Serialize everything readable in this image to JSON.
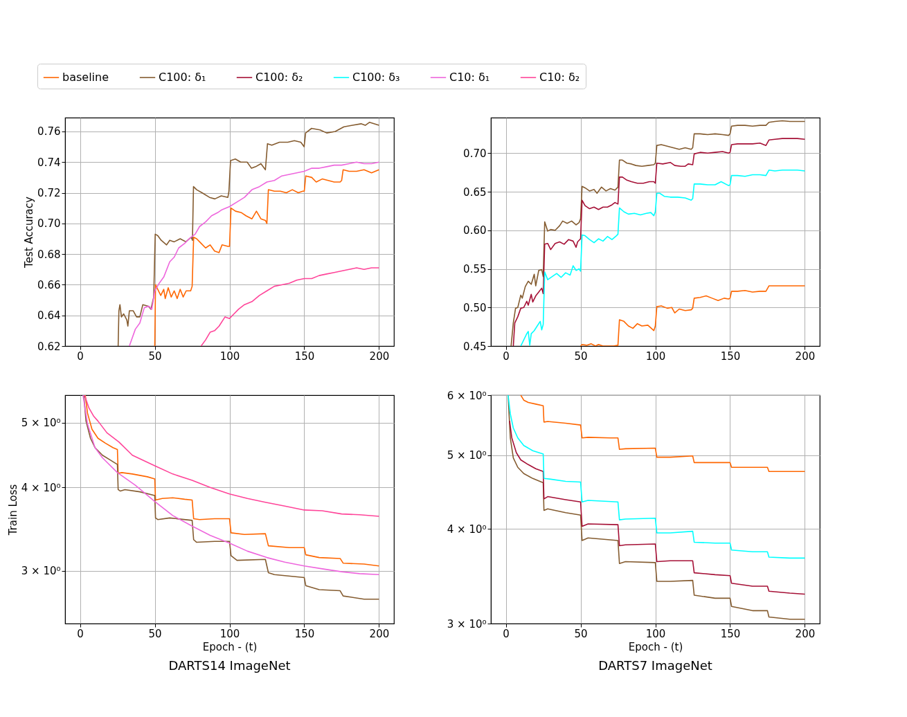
{
  "chart_data": [
    {
      "type": "line",
      "ylabel": "Test Accuracy",
      "legend": "top",
      "grid": true,
      "xlim": [
        -10,
        210
      ],
      "xticks": [
        0,
        50,
        100,
        150,
        200
      ],
      "ylim": [
        0.62,
        0.769
      ],
      "yticks": [
        0.62,
        0.64,
        0.66,
        0.68,
        {
          "value": 0.7,
          "label": "0.70"
        },
        0.72,
        0.74,
        0.76
      ],
      "series": [
        {
          "name": "baseline",
          "color": "#ff6600",
          "x": [
            50,
            50.5,
            52,
            54,
            56,
            57,
            59,
            61,
            63,
            65,
            67,
            69,
            71,
            74,
            75,
            76,
            78,
            81,
            84,
            87,
            90,
            93,
            95,
            99,
            100,
            101,
            104,
            108,
            111,
            115,
            118,
            121,
            124,
            125,
            126,
            130,
            134,
            138,
            142,
            146,
            149,
            150,
            151,
            155,
            158,
            162,
            166,
            170,
            174,
            175,
            176,
            180,
            185,
            190,
            195,
            200
          ],
          "values": [
            0.62,
            0.66,
            0.657,
            0.653,
            0.657,
            0.651,
            0.658,
            0.652,
            0.656,
            0.651,
            0.657,
            0.652,
            0.656,
            0.656,
            0.659,
            0.691,
            0.69,
            0.687,
            0.684,
            0.686,
            0.682,
            0.681,
            0.686,
            0.685,
            0.685,
            0.71,
            0.708,
            0.707,
            0.705,
            0.703,
            0.708,
            0.703,
            0.702,
            0.7,
            0.722,
            0.721,
            0.721,
            0.72,
            0.722,
            0.72,
            0.721,
            0.721,
            0.731,
            0.73,
            0.727,
            0.729,
            0.728,
            0.727,
            0.727,
            0.728,
            0.735,
            0.734,
            0.734,
            0.735,
            0.733,
            0.735
          ]
        },
        {
          "name": "C100: δ₁",
          "color": "#845b2f",
          "x": [
            25.5,
            26,
            26.7,
            27.7,
            29.2,
            31.3,
            32,
            33,
            35.6,
            37.8,
            40,
            42,
            45.7,
            47.4,
            49.3,
            50.3,
            52,
            54.3,
            57.9,
            60,
            63,
            67,
            70.8,
            74.4,
            75.2,
            75.9,
            78,
            81.6,
            86.6,
            90.2,
            94.5,
            98.9,
            99.6,
            100.7,
            103.9,
            107.5,
            111.8,
            114.7,
            117.5,
            121,
            124,
            125.4,
            128.3,
            133.4,
            139,
            143.4,
            147.7,
            149.9,
            150.9,
            154.9,
            160.6,
            165,
            170.7,
            176.5,
            182.2,
            188,
            190.8,
            193.7,
            200
          ],
          "values": [
            0.62,
            0.643,
            0.647,
            0.639,
            0.641,
            0.637,
            0.633,
            0.643,
            0.643,
            0.639,
            0.639,
            0.647,
            0.646,
            0.644,
            0.652,
            0.693,
            0.692,
            0.689,
            0.686,
            0.689,
            0.688,
            0.69,
            0.688,
            0.691,
            0.689,
            0.724,
            0.722,
            0.72,
            0.717,
            0.716,
            0.718,
            0.717,
            0.721,
            0.741,
            0.742,
            0.74,
            0.74,
            0.736,
            0.737,
            0.739,
            0.735,
            0.752,
            0.751,
            0.753,
            0.753,
            0.754,
            0.753,
            0.75,
            0.759,
            0.762,
            0.761,
            0.759,
            0.76,
            0.763,
            0.764,
            0.765,
            0.764,
            0.766,
            0.764
          ]
        },
        {
          "name": "C10: δ₁",
          "color": "#ee66dd",
          "x": [
            33,
            37,
            40,
            43,
            46,
            48,
            50,
            53,
            56,
            60,
            63,
            66,
            70,
            73,
            77,
            80,
            84,
            88,
            92,
            95,
            100,
            105,
            110,
            115,
            120,
            125,
            130,
            135,
            140,
            145,
            150,
            155,
            160,
            165,
            170,
            175,
            180,
            185,
            190,
            195,
            200
          ],
          "values": [
            0.62,
            0.631,
            0.635,
            0.645,
            0.646,
            0.644,
            0.656,
            0.661,
            0.665,
            0.675,
            0.678,
            0.684,
            0.687,
            0.69,
            0.693,
            0.698,
            0.701,
            0.705,
            0.707,
            0.709,
            0.711,
            0.714,
            0.717,
            0.722,
            0.724,
            0.727,
            0.728,
            0.731,
            0.732,
            0.733,
            0.734,
            0.736,
            0.736,
            0.737,
            0.738,
            0.738,
            0.739,
            0.74,
            0.739,
            0.739,
            0.74
          ]
        },
        {
          "name": "C10: δ₂",
          "color": "#ff4499",
          "x": [
            81,
            84,
            87,
            90,
            93,
            97,
            100,
            103,
            106,
            110,
            115,
            120,
            125,
            130,
            135,
            140,
            145,
            150,
            155,
            160,
            165,
            170,
            175,
            180,
            185,
            190,
            195,
            200
          ],
          "values": [
            0.62,
            0.624,
            0.629,
            0.63,
            0.633,
            0.639,
            0.638,
            0.641,
            0.644,
            0.647,
            0.649,
            0.653,
            0.656,
            0.659,
            0.66,
            0.661,
            0.663,
            0.664,
            0.664,
            0.666,
            0.667,
            0.668,
            0.669,
            0.67,
            0.671,
            0.67,
            0.671,
            0.671
          ]
        }
      ]
    },
    {
      "type": "line",
      "legend": "top",
      "grid": true,
      "xlim": [
        -10,
        210
      ],
      "xticks": [
        0,
        50,
        100,
        150,
        200
      ],
      "ylim": [
        0.45,
        0.746
      ],
      "yticks": [
        0.45,
        {
          "value": 0.5,
          "label": "0.50"
        },
        0.55,
        {
          "value": 0.6,
          "label": "0.60"
        },
        0.65,
        {
          "value": 0.7,
          "label": "0.70"
        }
      ],
      "series": [
        {
          "name": "baseline",
          "color": "#ff6600",
          "x": [
            50,
            51,
            54,
            57,
            60,
            62,
            65,
            68,
            72,
            75,
            76,
            79,
            82,
            85,
            88,
            91,
            95,
            99,
            100,
            101,
            104,
            108,
            111,
            113,
            116,
            120,
            124,
            125,
            126,
            130,
            134,
            138,
            142,
            146,
            149,
            150,
            151,
            155,
            160,
            165,
            170,
            174,
            176,
            180,
            185,
            190,
            195,
            200
          ],
          "values": [
            0.45,
            0.452,
            0.451,
            0.453,
            0.45,
            0.452,
            0.45,
            0.45,
            0.45,
            0.451,
            0.484,
            0.482,
            0.476,
            0.473,
            0.479,
            0.476,
            0.477,
            0.47,
            0.476,
            0.501,
            0.502,
            0.499,
            0.5,
            0.493,
            0.498,
            0.496,
            0.497,
            0.499,
            0.512,
            0.513,
            0.515,
            0.512,
            0.509,
            0.512,
            0.511,
            0.512,
            0.521,
            0.521,
            0.522,
            0.52,
            0.521,
            0.521,
            0.528,
            0.528,
            0.528,
            0.528,
            0.528,
            0.528
          ]
        },
        {
          "name": "C100: δ₁",
          "color": "#845b2f",
          "x": [
            3.5,
            5,
            6.5,
            8,
            10,
            11,
            13,
            15,
            17,
            19,
            20,
            22,
            24,
            25,
            26,
            28,
            30,
            33,
            36,
            38,
            41,
            44,
            47,
            49,
            50,
            51,
            53,
            56,
            59,
            61,
            64,
            67,
            70,
            73,
            75,
            76,
            78,
            81,
            84,
            87,
            91,
            95,
            99,
            100,
            101,
            104,
            108,
            112,
            116,
            120,
            124,
            125,
            126,
            130,
            135,
            140,
            145,
            149,
            150,
            151,
            155,
            160,
            165,
            170,
            174,
            176,
            180,
            185,
            190,
            195,
            200
          ],
          "values": [
            0.45,
            0.48,
            0.499,
            0.5,
            0.516,
            0.512,
            0.527,
            0.534,
            0.53,
            0.543,
            0.528,
            0.548,
            0.549,
            0.54,
            0.611,
            0.599,
            0.601,
            0.6,
            0.606,
            0.612,
            0.609,
            0.612,
            0.607,
            0.61,
            0.615,
            0.657,
            0.655,
            0.651,
            0.653,
            0.648,
            0.656,
            0.651,
            0.654,
            0.652,
            0.656,
            0.691,
            0.691,
            0.687,
            0.686,
            0.684,
            0.683,
            0.684,
            0.685,
            0.687,
            0.71,
            0.711,
            0.709,
            0.707,
            0.705,
            0.707,
            0.705,
            0.707,
            0.725,
            0.725,
            0.724,
            0.725,
            0.724,
            0.723,
            0.725,
            0.735,
            0.736,
            0.736,
            0.735,
            0.736,
            0.736,
            0.74,
            0.741,
            0.742,
            0.741,
            0.741,
            0.741
          ]
        },
        {
          "name": "C100: δ₂",
          "color": "#a50f35",
          "x": [
            5,
            6,
            8,
            10,
            12,
            14,
            15,
            17,
            18,
            20,
            22,
            24,
            25,
            26,
            28,
            30,
            33,
            36,
            39,
            42,
            45,
            47,
            48,
            50,
            51,
            53,
            56,
            59,
            62,
            65,
            68,
            71,
            73,
            75,
            76,
            78,
            81,
            84,
            88,
            92,
            96,
            99,
            100,
            101,
            105,
            110,
            113,
            117,
            120,
            122,
            125,
            126,
            130,
            135,
            140,
            145,
            149,
            150,
            151,
            155,
            160,
            165,
            170,
            174,
            176,
            180,
            185,
            190,
            195,
            200
          ],
          "values": [
            0.45,
            0.48,
            0.488,
            0.499,
            0.5,
            0.508,
            0.503,
            0.517,
            0.507,
            0.515,
            0.52,
            0.525,
            0.518,
            0.582,
            0.583,
            0.575,
            0.583,
            0.585,
            0.582,
            0.588,
            0.586,
            0.578,
            0.585,
            0.589,
            0.639,
            0.632,
            0.628,
            0.63,
            0.627,
            0.63,
            0.63,
            0.633,
            0.636,
            0.634,
            0.669,
            0.669,
            0.665,
            0.663,
            0.661,
            0.661,
            0.663,
            0.663,
            0.661,
            0.687,
            0.686,
            0.688,
            0.684,
            0.683,
            0.683,
            0.686,
            0.685,
            0.699,
            0.701,
            0.7,
            0.701,
            0.702,
            0.7,
            0.701,
            0.711,
            0.712,
            0.712,
            0.712,
            0.713,
            0.71,
            0.717,
            0.718,
            0.719,
            0.719,
            0.719,
            0.718
          ]
        },
        {
          "name": "C100: δ₃",
          "color": "#00ffff",
          "x": [
            10,
            12,
            14,
            15,
            16,
            17,
            19,
            21,
            23,
            24,
            25,
            26,
            28,
            31,
            34,
            37,
            40,
            43,
            45,
            47,
            49,
            50,
            51,
            53,
            56,
            59,
            62,
            65,
            68,
            71,
            74,
            75,
            76,
            79,
            82,
            86,
            90,
            94,
            97,
            99,
            100,
            101,
            103,
            106,
            110,
            115,
            120,
            124,
            125,
            126,
            130,
            135,
            140,
            144,
            149,
            150,
            151,
            155,
            160,
            165,
            170,
            174,
            176,
            180,
            185,
            190,
            195,
            200
          ],
          "values": [
            0.45,
            0.458,
            0.466,
            0.469,
            0.451,
            0.466,
            0.47,
            0.476,
            0.482,
            0.471,
            0.478,
            0.546,
            0.536,
            0.54,
            0.544,
            0.539,
            0.545,
            0.542,
            0.554,
            0.548,
            0.55,
            0.547,
            0.594,
            0.593,
            0.588,
            0.584,
            0.589,
            0.586,
            0.592,
            0.588,
            0.593,
            0.595,
            0.629,
            0.624,
            0.621,
            0.622,
            0.62,
            0.622,
            0.623,
            0.619,
            0.624,
            0.648,
            0.648,
            0.644,
            0.643,
            0.643,
            0.642,
            0.639,
            0.641,
            0.66,
            0.66,
            0.659,
            0.659,
            0.663,
            0.658,
            0.659,
            0.671,
            0.671,
            0.67,
            0.672,
            0.672,
            0.671,
            0.678,
            0.677,
            0.678,
            0.678,
            0.678,
            0.677
          ]
        }
      ]
    },
    {
      "type": "line",
      "title": "DARTS14 ImageNet",
      "xlabel": "Epoch - (t)",
      "ylabel": "Train Loss",
      "log": "y",
      "legend": "top",
      "grid": true,
      "xlim": [
        -10,
        210
      ],
      "xticks": [
        0,
        50,
        100,
        150,
        200
      ],
      "ylim": [
        2.5,
        5.5
      ],
      "yticks": [
        {
          "value": 3,
          "label": "3 × 10⁰"
        },
        {
          "value": 4,
          "label": "4 × 10⁰"
        },
        {
          "value": 5,
          "label": "5 × 10⁰"
        }
      ],
      "series": [
        {
          "name": "baseline",
          "color": "#ff6600",
          "x": [
            3.5,
            5,
            8,
            12,
            17,
            22,
            25,
            25.5,
            28,
            35,
            45,
            50,
            50.5,
            55,
            62,
            70,
            75,
            76,
            80,
            90,
            100,
            101,
            110,
            124,
            126,
            140,
            150,
            151,
            160,
            174,
            176,
            190,
            200
          ],
          "values": [
            5.5,
            5.17,
            4.89,
            4.74,
            4.66,
            4.59,
            4.56,
            4.2,
            4.21,
            4.19,
            4.15,
            4.12,
            3.83,
            3.85,
            3.86,
            3.84,
            3.83,
            3.59,
            3.58,
            3.59,
            3.59,
            3.42,
            3.4,
            3.41,
            3.27,
            3.25,
            3.25,
            3.17,
            3.14,
            3.13,
            3.08,
            3.07,
            3.05
          ]
        },
        {
          "name": "C100: δ₁",
          "color": "#845b2f",
          "x": [
            2.5,
            4,
            7,
            10,
            15,
            20,
            25,
            25.5,
            27,
            30,
            40,
            50,
            50.5,
            52,
            60,
            75,
            76,
            78,
            90,
            100,
            101,
            105,
            124,
            126,
            130,
            150,
            151,
            160,
            174,
            176,
            190,
            200
          ],
          "values": [
            5.5,
            5.03,
            4.74,
            4.59,
            4.47,
            4.4,
            4.33,
            3.97,
            3.95,
            3.97,
            3.94,
            3.89,
            3.6,
            3.58,
            3.6,
            3.57,
            3.34,
            3.31,
            3.32,
            3.32,
            3.16,
            3.11,
            3.12,
            2.98,
            2.96,
            2.93,
            2.85,
            2.81,
            2.8,
            2.75,
            2.72,
            2.72
          ]
        },
        {
          "name": "C10: δ₁",
          "color": "#ee66dd",
          "x": [
            2,
            5,
            10,
            15,
            25,
            37,
            50,
            62,
            75,
            87,
            100,
            112,
            125,
            137,
            150,
            162,
            175,
            187,
            200
          ],
          "values": [
            5.5,
            4.98,
            4.59,
            4.43,
            4.21,
            4.03,
            3.81,
            3.63,
            3.5,
            3.39,
            3.3,
            3.21,
            3.14,
            3.09,
            3.05,
            3.02,
            2.99,
            2.97,
            2.96
          ]
        },
        {
          "name": "C10: δ₂",
          "color": "#ff4499",
          "x": [
            3,
            6,
            9,
            12,
            18,
            26,
            35,
            50,
            62,
            75,
            87,
            100,
            112,
            124,
            137,
            150,
            162,
            175,
            187,
            200
          ],
          "values": [
            5.5,
            5.26,
            5.12,
            5.03,
            4.83,
            4.68,
            4.47,
            4.31,
            4.19,
            4.1,
            4.0,
            3.91,
            3.85,
            3.8,
            3.75,
            3.7,
            3.69,
            3.65,
            3.64,
            3.62
          ]
        }
      ]
    },
    {
      "type": "line",
      "title": "DARTS7 ImageNet",
      "xlabel": "Epoch - (t)",
      "log": "y",
      "legend": "top",
      "grid": true,
      "xlim": [
        -10,
        210
      ],
      "xticks": [
        0,
        50,
        100,
        150,
        200
      ],
      "ylim": [
        3,
        6
      ],
      "yticks": [
        {
          "value": 3,
          "label": "3 × 10⁰"
        },
        {
          "value": 4,
          "label": "4 × 10⁰"
        },
        {
          "value": 5,
          "label": "5 × 10⁰"
        },
        {
          "value": 6,
          "label": "6 × 10⁰"
        }
      ],
      "series": [
        {
          "name": "baseline",
          "color": "#ff6600",
          "x": [
            10,
            12,
            15,
            20,
            25,
            25.5,
            28,
            40,
            50,
            51,
            55,
            70,
            75,
            76,
            80,
            100,
            101,
            110,
            125,
            126,
            140,
            150,
            151,
            165,
            175,
            176,
            190,
            200
          ],
          "values": [
            6.0,
            5.91,
            5.87,
            5.84,
            5.81,
            5.53,
            5.54,
            5.51,
            5.48,
            5.27,
            5.28,
            5.27,
            5.27,
            5.09,
            5.1,
            5.11,
            4.97,
            4.97,
            4.99,
            4.89,
            4.89,
            4.89,
            4.82,
            4.82,
            4.82,
            4.76,
            4.76,
            4.76
          ]
        },
        {
          "name": "C100: δ₁",
          "color": "#845b2f",
          "x": [
            1.5,
            3,
            5,
            8,
            12,
            18,
            25,
            25.5,
            28,
            40,
            50,
            51,
            55,
            75,
            76,
            80,
            100,
            101,
            110,
            125,
            126,
            140,
            150,
            151,
            165,
            175,
            176,
            190,
            200
          ],
          "values": [
            6.0,
            5.27,
            4.96,
            4.82,
            4.73,
            4.66,
            4.6,
            4.23,
            4.25,
            4.2,
            4.17,
            3.86,
            3.89,
            3.86,
            3.6,
            3.62,
            3.61,
            3.41,
            3.41,
            3.42,
            3.27,
            3.24,
            3.24,
            3.16,
            3.12,
            3.12,
            3.06,
            3.04,
            3.04
          ]
        },
        {
          "name": "C100: δ₂",
          "color": "#a50f35",
          "x": [
            2.5,
            4,
            7,
            10,
            15,
            20,
            25,
            25.5,
            28,
            40,
            50,
            51,
            55,
            75,
            76,
            80,
            100,
            101,
            110,
            125,
            126,
            140,
            150,
            151,
            165,
            175,
            176,
            190,
            200
          ],
          "values": [
            5.55,
            5.27,
            5.04,
            4.93,
            4.86,
            4.8,
            4.76,
            4.38,
            4.41,
            4.37,
            4.34,
            4.03,
            4.06,
            4.05,
            3.8,
            3.81,
            3.82,
            3.62,
            3.63,
            3.63,
            3.5,
            3.48,
            3.47,
            3.39,
            3.36,
            3.36,
            3.31,
            3.29,
            3.28
          ]
        },
        {
          "name": "C100: δ₃",
          "color": "#00ffff",
          "x": [
            1.5,
            3,
            5,
            8,
            12,
            18,
            25,
            25.5,
            30,
            40,
            50,
            51,
            55,
            75,
            76,
            80,
            100,
            101,
            110,
            125,
            126,
            140,
            150,
            151,
            165,
            175,
            176,
            190,
            200
          ],
          "values": [
            6.0,
            5.67,
            5.43,
            5.27,
            5.15,
            5.07,
            5.02,
            4.66,
            4.65,
            4.62,
            4.61,
            4.34,
            4.36,
            4.34,
            4.11,
            4.12,
            4.13,
            3.95,
            3.95,
            3.97,
            3.84,
            3.83,
            3.83,
            3.75,
            3.73,
            3.73,
            3.67,
            3.66,
            3.66
          ]
        }
      ]
    }
  ]
}
